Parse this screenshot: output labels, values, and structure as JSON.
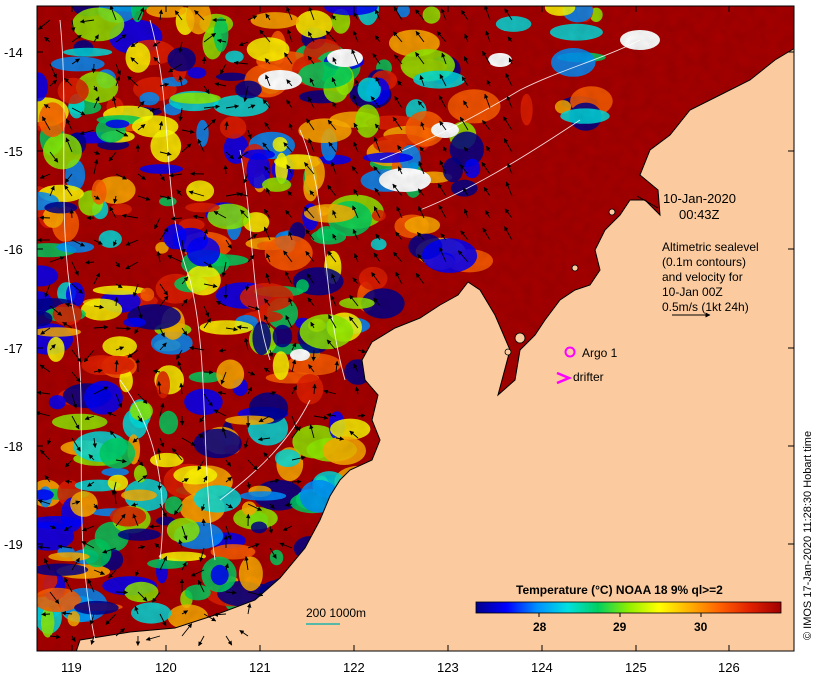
{
  "map": {
    "lat_ticks": [
      "-14",
      "-15",
      "-16",
      "-17",
      "-18",
      "-19"
    ],
    "lon_ticks": [
      "119",
      "120",
      "121",
      "122",
      "123",
      "124",
      "125",
      "126"
    ],
    "lon_range": [
      118.63,
      126.68
    ],
    "lat_range": [
      -20.1,
      -13.64
    ]
  },
  "annotations": {
    "date_line1": "10-Jan-2020",
    "date_line2": "00:43Z",
    "alt_line1": "Altimetric sealevel",
    "alt_line2": "(0.1m contours)",
    "alt_line3": "and velocity for",
    "alt_line4": "10-Jan 00Z",
    "alt_line5": "0.5m/s (1kt 24h)",
    "argo_label": "Argo 1",
    "drifter_label": "drifter",
    "scale_label": "200  1000m"
  },
  "colorbar": {
    "title": "Temperature (°C) NOAA 18 9% ql>=2",
    "ticks": [
      "28",
      "29",
      "30"
    ],
    "colors": [
      "#00008b",
      "#0000ff",
      "#0090ff",
      "#00e0e0",
      "#00d060",
      "#90ee00",
      "#ffff00",
      "#ffb000",
      "#ff6000",
      "#e02000",
      "#a00000"
    ]
  },
  "credit": "© IMOS 17-Jan-2020 11:28:30 Hobart time",
  "colors": {
    "land": "#fbcb9f",
    "coast": "#000000",
    "contour": "#ffffff",
    "argo": "#ff00ff",
    "drifter": "#ff00ff",
    "isobath": "#20b2aa"
  }
}
